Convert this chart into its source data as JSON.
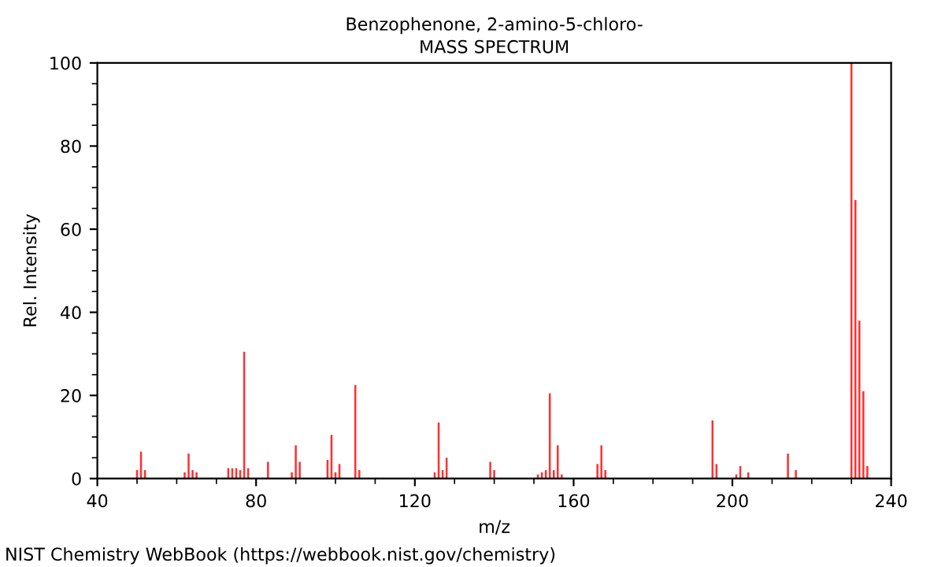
{
  "chart_data": {
    "type": "bar",
    "title": "Benzophenone, 2-amino-5-chloro-",
    "subtitle": "MASS SPECTRUM",
    "xlabel": "m/z",
    "ylabel": "Rel. Intensity",
    "x": [
      50,
      51,
      52,
      62,
      63,
      64,
      65,
      73,
      74,
      75,
      76,
      77,
      78,
      83,
      89,
      90,
      91,
      98,
      99,
      100,
      101,
      105,
      106,
      125,
      126,
      127,
      128,
      139,
      140,
      151,
      152,
      153,
      154,
      155,
      156,
      157,
      166,
      167,
      168,
      195,
      196,
      201,
      202,
      204,
      214,
      216,
      230,
      231,
      232,
      233,
      234
    ],
    "values": [
      2,
      6.5,
      2,
      1.5,
      6,
      2,
      1.5,
      2.5,
      2.5,
      2.5,
      2,
      30.5,
      2.5,
      4,
      1.5,
      8,
      4,
      4.5,
      10.5,
      1.5,
      3.5,
      22.5,
      2,
      1.5,
      13.5,
      2,
      5,
      4,
      2,
      1,
      1.5,
      2,
      20.5,
      2,
      8,
      1,
      3.5,
      8,
      2,
      14,
      3.5,
      1,
      3,
      1.5,
      6,
      2,
      100,
      67,
      38,
      21,
      3
    ],
    "color": "#ff3030",
    "xlim": [
      40,
      240
    ],
    "xticks": [
      40,
      {
        "value": 50,
        "label": null
      },
      {
        "value": 60,
        "label": null
      },
      {
        "value": 70,
        "label": null
      },
      80,
      {
        "value": 90,
        "label": null
      },
      {
        "value": 100,
        "label": null
      },
      {
        "value": 110,
        "label": null
      },
      120,
      {
        "value": 130,
        "label": null
      },
      {
        "value": 140,
        "label": null
      },
      {
        "value": 150,
        "label": null
      },
      160,
      {
        "value": 170,
        "label": null
      },
      {
        "value": 180,
        "label": null
      },
      {
        "value": 190,
        "label": null
      },
      200,
      {
        "value": 210,
        "label": null
      },
      {
        "value": 220,
        "label": null
      },
      {
        "value": 230,
        "label": null
      },
      240
    ],
    "ylim": [
      0,
      100
    ],
    "yticks": [
      0,
      {
        "value": 5,
        "label": null
      },
      {
        "value": 10,
        "label": null
      },
      {
        "value": 15,
        "label": null
      },
      20,
      {
        "value": 25,
        "label": null
      },
      {
        "value": 30,
        "label": null
      },
      {
        "value": 35,
        "label": null
      },
      40,
      {
        "value": 45,
        "label": null
      },
      {
        "value": 50,
        "label": null
      },
      {
        "value": 55,
        "label": null
      },
      60,
      {
        "value": 65,
        "label": null
      },
      {
        "value": 70,
        "label": null
      },
      {
        "value": 75,
        "label": null
      },
      80,
      {
        "value": 85,
        "label": null
      },
      {
        "value": 90,
        "label": null
      },
      {
        "value": 95,
        "label": null
      },
      100
    ],
    "grid": false,
    "legend": false,
    "annotations": [
      "NIST Chemistry WebBook (https://webbook.nist.gov/chemistry)"
    ]
  }
}
